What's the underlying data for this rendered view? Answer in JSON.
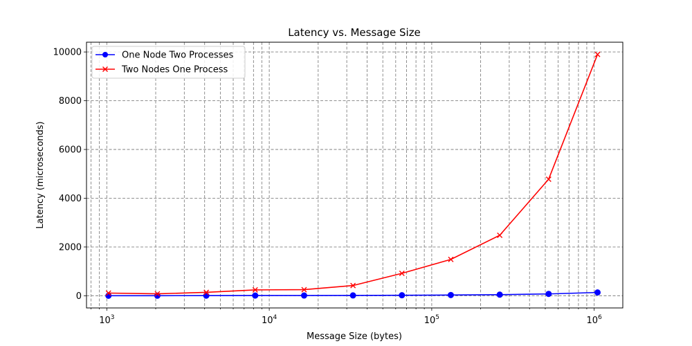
{
  "chart_data": {
    "type": "line",
    "title": "Latency vs. Message Size",
    "xlabel": "Message Size (bytes)",
    "ylabel": "Latency (microseconds)",
    "xscale": "log",
    "xlim": [
      750,
      1500000
    ],
    "ylim": [
      -500,
      10400
    ],
    "x_ticks": [
      {
        "value": 1000,
        "mantissa": "10",
        "exp": "3"
      },
      {
        "value": 10000,
        "mantissa": "10",
        "exp": "4"
      },
      {
        "value": 100000,
        "mantissa": "10",
        "exp": "5"
      },
      {
        "value": 1000000,
        "mantissa": "10",
        "exp": "6"
      }
    ],
    "y_ticks": [
      0,
      2000,
      4000,
      6000,
      8000,
      10000
    ],
    "grid": true,
    "legend_position": "top-left",
    "x": [
      1024,
      2048,
      4096,
      8192,
      16384,
      32768,
      65536,
      131072,
      262144,
      524288,
      1048576
    ],
    "series": [
      {
        "name": "One Node Two Processes",
        "color": "#0000ff",
        "marker": "circle",
        "values": [
          2,
          3,
          5,
          8,
          10,
          14,
          20,
          30,
          45,
          75,
          135
        ]
      },
      {
        "name": "Two Nodes One Process",
        "color": "#ff0000",
        "marker": "x",
        "values": [
          110,
          80,
          140,
          240,
          250,
          420,
          920,
          1490,
          2480,
          4780,
          9900
        ]
      }
    ]
  }
}
